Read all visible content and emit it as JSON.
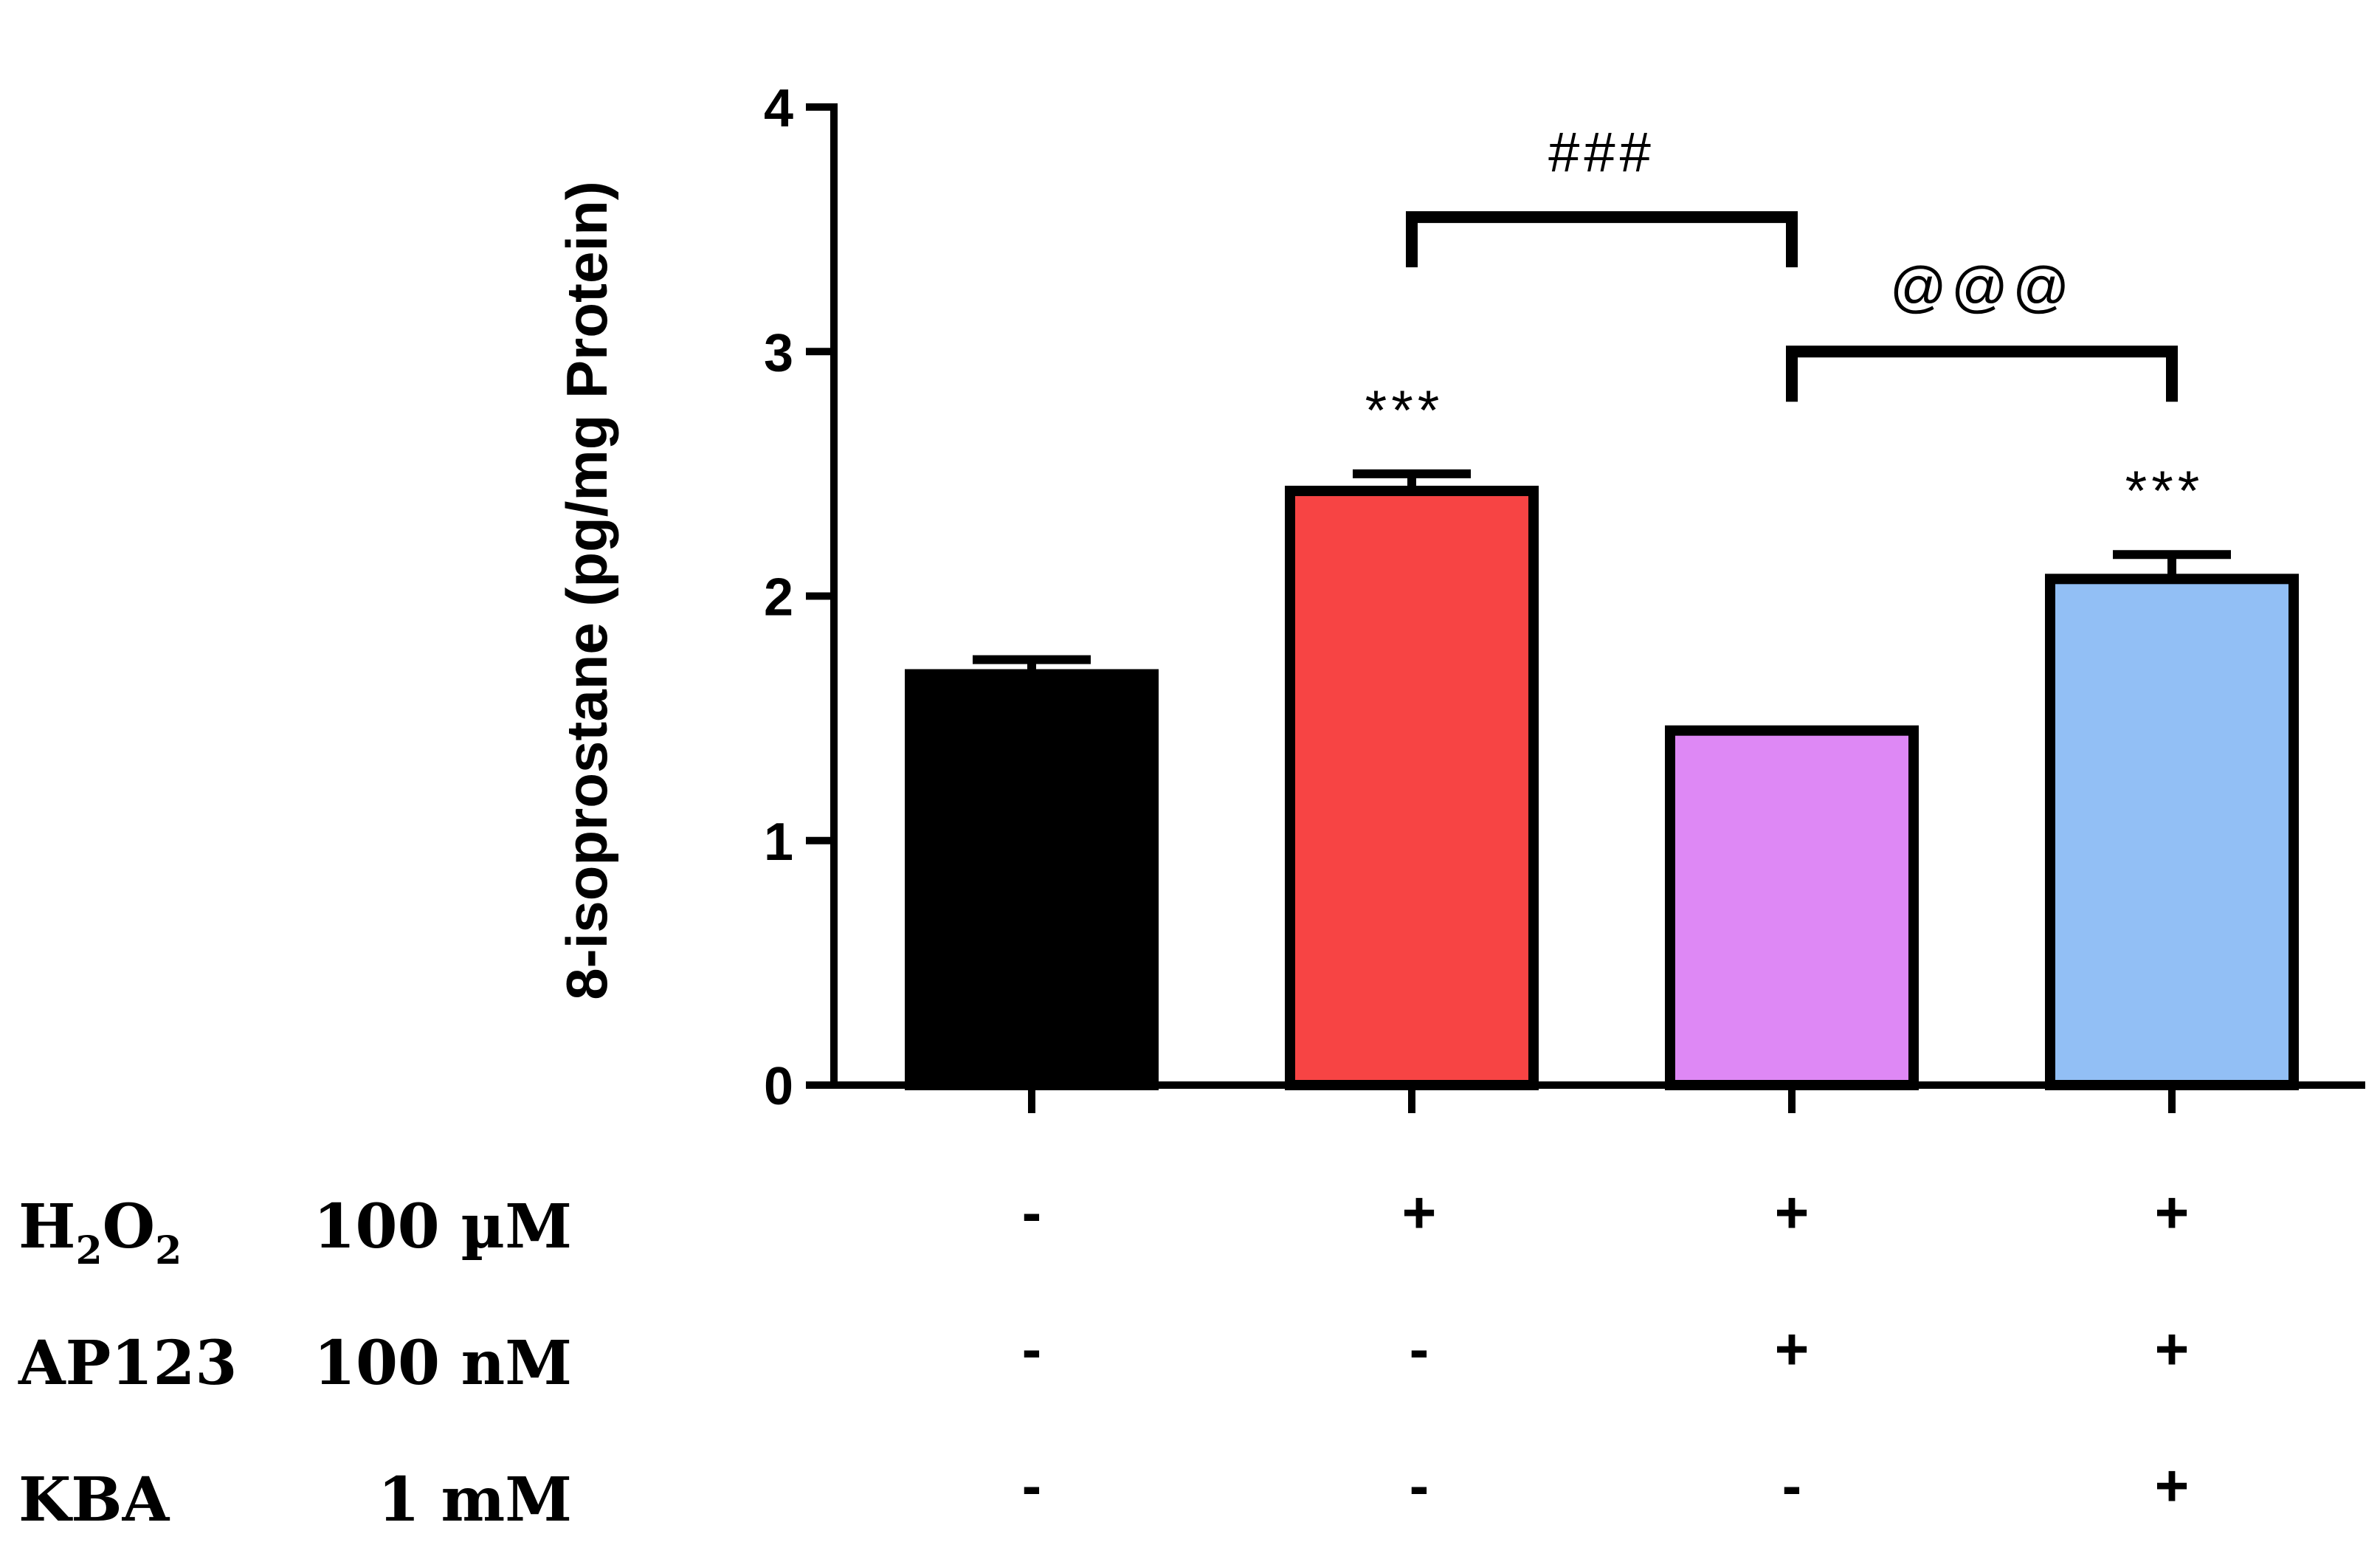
{
  "chart_data": {
    "type": "bar",
    "title": "",
    "xlabel": "",
    "ylabel": "8-isoprostane (pg/mg Protein)",
    "ylim": [
      0,
      4
    ],
    "yticks": [
      0,
      1,
      2,
      3,
      4
    ],
    "grid": false,
    "bars": [
      {
        "value": 1.68,
        "error": 0.06,
        "color": "#000000",
        "star": ""
      },
      {
        "value": 2.43,
        "error": 0.07,
        "color": "#f74444",
        "star": "***"
      },
      {
        "value": 1.45,
        "error": 0.0,
        "color": "#de88f5",
        "star": ""
      },
      {
        "value": 2.07,
        "error": 0.1,
        "color": "#92bff5",
        "star": "***"
      }
    ],
    "brackets": [
      {
        "from": 1,
        "to": 2,
        "label": "###",
        "y": 3.55
      },
      {
        "from": 2,
        "to": 3,
        "label": "@@@",
        "y": 3.0
      }
    ],
    "treatments": [
      {
        "name": "H",
        "sub1": "2",
        "mid": "O",
        "sub2": "2",
        "dose": "100 µM",
        "signs": [
          "-",
          "+",
          "+",
          "+"
        ]
      },
      {
        "name": "AP123",
        "dose": "100 nM",
        "signs": [
          "-",
          "-",
          "+",
          "+"
        ]
      },
      {
        "name": "KBA",
        "dose": "1 mM",
        "signs": [
          "-",
          "-",
          "-",
          "+"
        ]
      }
    ]
  }
}
